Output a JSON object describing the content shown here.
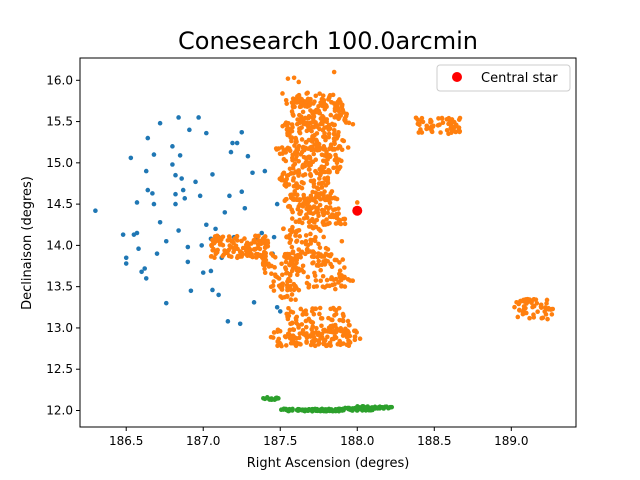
{
  "chart_data": {
    "type": "scatter",
    "title": "Conesearch 100.0arcmin",
    "xlabel": "Right Ascension (degres)",
    "ylabel": "Declinaison (degres)",
    "xlim": [
      186.2,
      189.42
    ],
    "ylim": [
      11.8,
      16.27
    ],
    "xticks": [
      186.5,
      187.0,
      187.5,
      188.0,
      188.5,
      189.0
    ],
    "xtick_labels": [
      "186.5",
      "187.0",
      "187.5",
      "188.0",
      "188.5",
      "189.0"
    ],
    "yticks": [
      12.0,
      12.5,
      13.0,
      13.5,
      14.0,
      14.5,
      15.0,
      15.5,
      16.0
    ],
    "ytick_labels": [
      "12.0",
      "12.5",
      "13.0",
      "13.5",
      "14.0",
      "14.5",
      "15.0",
      "15.5",
      "16.0"
    ],
    "legend": {
      "position": "top-right",
      "entries": [
        "Central star"
      ]
    },
    "grid": false,
    "series": [
      {
        "color": "#1f77b4",
        "points": [
          [
            186.3,
            14.42
          ],
          [
            186.48,
            14.13
          ],
          [
            186.53,
            15.06
          ],
          [
            186.5,
            13.85
          ],
          [
            186.5,
            13.78
          ],
          [
            186.55,
            14.13
          ],
          [
            186.57,
            14.15
          ],
          [
            186.58,
            13.96
          ],
          [
            186.57,
            14.52
          ],
          [
            186.6,
            13.68
          ],
          [
            186.63,
            14.9
          ],
          [
            186.64,
            14.67
          ],
          [
            186.64,
            15.3
          ],
          [
            186.62,
            13.72
          ],
          [
            186.63,
            13.6
          ],
          [
            186.67,
            14.63
          ],
          [
            186.68,
            14.5
          ],
          [
            186.68,
            15.1
          ],
          [
            186.72,
            14.28
          ],
          [
            186.7,
            13.9
          ],
          [
            186.72,
            15.48
          ],
          [
            186.76,
            14.05
          ],
          [
            186.76,
            13.3
          ],
          [
            186.8,
            15.2
          ],
          [
            186.8,
            14.98
          ],
          [
            186.82,
            14.62
          ],
          [
            186.82,
            14.85
          ],
          [
            186.82,
            14.5
          ],
          [
            186.84,
            15.55
          ],
          [
            186.85,
            15.09
          ],
          [
            186.84,
            14.18
          ],
          [
            186.86,
            14.81
          ],
          [
            186.87,
            14.67
          ],
          [
            186.88,
            14.57
          ],
          [
            186.9,
            13.98
          ],
          [
            186.9,
            13.8
          ],
          [
            186.91,
            15.4
          ],
          [
            186.92,
            13.45
          ],
          [
            186.95,
            14.77
          ],
          [
            186.97,
            15.55
          ],
          [
            186.98,
            14.6
          ],
          [
            186.99,
            14.0
          ],
          [
            187.0,
            13.67
          ],
          [
            187.02,
            15.36
          ],
          [
            187.02,
            14.25
          ],
          [
            187.05,
            14.08
          ],
          [
            187.05,
            13.69
          ],
          [
            187.06,
            14.86
          ],
          [
            187.06,
            13.46
          ],
          [
            187.08,
            14.2
          ],
          [
            187.1,
            14.1
          ],
          [
            187.1,
            13.4
          ],
          [
            187.12,
            13.85
          ],
          [
            187.14,
            14.4
          ],
          [
            187.16,
            13.08
          ],
          [
            187.17,
            14.6
          ],
          [
            187.18,
            15.13
          ],
          [
            187.19,
            15.24
          ],
          [
            187.2,
            14.1
          ],
          [
            187.22,
            15.24
          ],
          [
            187.24,
            13.05
          ],
          [
            187.25,
            14.65
          ],
          [
            187.25,
            15.37
          ],
          [
            187.27,
            14.45
          ],
          [
            187.29,
            15.08
          ],
          [
            187.32,
            14.88
          ],
          [
            187.33,
            13.31
          ],
          [
            187.35,
            14.08
          ],
          [
            187.38,
            14.15
          ],
          [
            187.4,
            14.9
          ],
          [
            187.48,
            13.25
          ],
          [
            187.48,
            14.5
          ],
          [
            187.45,
            13.9
          ],
          [
            187.5,
            13.2
          ],
          [
            187.46,
            14.1
          ]
        ]
      },
      {
        "color": "#ff7f0e",
        "clusters": [
          {
            "type": "band",
            "y0": 15.45,
            "y1": 15.85,
            "x0": 187.56,
            "x1": 187.92,
            "skew": -0.12,
            "n": 150
          },
          {
            "type": "band",
            "y0": 15.15,
            "y1": 15.5,
            "x0": 187.55,
            "x1": 187.9,
            "skew": -0.12,
            "n": 110
          },
          {
            "type": "band",
            "y0": 14.85,
            "y1": 15.2,
            "x0": 187.52,
            "x1": 187.9,
            "skew": -0.12,
            "n": 110
          },
          {
            "type": "band",
            "y0": 14.55,
            "y1": 14.9,
            "x0": 187.52,
            "x1": 187.85,
            "skew": -0.1,
            "n": 90
          },
          {
            "type": "band",
            "y0": 14.25,
            "y1": 14.58,
            "x0": 187.55,
            "x1": 187.9,
            "skew": -0.1,
            "n": 110
          },
          {
            "type": "band",
            "y0": 13.85,
            "y1": 14.25,
            "x0": 187.55,
            "x1": 187.8,
            "skew": -0.08,
            "n": 70
          },
          {
            "type": "band",
            "y0": 13.45,
            "y1": 13.9,
            "x0": 187.4,
            "x1": 187.95,
            "skew": -0.1,
            "n": 150
          },
          {
            "type": "band",
            "y0": 13.3,
            "y1": 13.55,
            "x0": 187.5,
            "x1": 187.6,
            "skew": 0.0,
            "n": 20
          },
          {
            "type": "band",
            "y0": 12.95,
            "y1": 13.25,
            "x0": 187.55,
            "x1": 187.95,
            "skew": -0.08,
            "n": 80
          },
          {
            "type": "band",
            "y0": 12.78,
            "y1": 12.98,
            "x0": 187.43,
            "x1": 188.02,
            "skew": 0.0,
            "n": 120
          },
          {
            "type": "band",
            "y0": 13.85,
            "y1": 14.12,
            "x0": 187.05,
            "x1": 187.42,
            "skew": 0.0,
            "n": 130
          },
          {
            "type": "band",
            "y0": 15.35,
            "y1": 15.55,
            "x0": 188.38,
            "x1": 188.67,
            "skew": 0.0,
            "n": 55
          },
          {
            "type": "band",
            "y0": 13.1,
            "y1": 13.35,
            "x0": 189.02,
            "x1": 189.27,
            "skew": 0.0,
            "n": 55
          }
        ],
        "points": [
          [
            187.55,
            16.02
          ],
          [
            187.59,
            16.03
          ],
          [
            187.62,
            15.98
          ],
          [
            187.85,
            16.1
          ],
          [
            187.6,
            15.3
          ],
          [
            187.56,
            15.35
          ],
          [
            188.0,
            14.52
          ],
          [
            187.52,
            14.2
          ],
          [
            187.5,
            13.5
          ],
          [
            187.62,
            13.95
          ],
          [
            187.9,
            14.05
          ]
        ]
      },
      {
        "color": "#2ca02c",
        "clusters": [
          {
            "type": "line",
            "y0": 11.99,
            "y1": 12.02,
            "x0": 187.5,
            "x1": 187.92,
            "skew": 0.0,
            "n": 90
          },
          {
            "type": "line",
            "y0": 12.0,
            "y1": 12.03,
            "x0": 187.92,
            "x1": 188.1,
            "skew": 0.0,
            "n": 45
          },
          {
            "type": "line",
            "y0": 12.02,
            "y1": 12.05,
            "x0": 188.0,
            "x1": 188.23,
            "skew": 0.0,
            "n": 45
          },
          {
            "type": "line",
            "y0": 12.13,
            "y1": 12.16,
            "x0": 187.39,
            "x1": 187.49,
            "skew": 0.0,
            "n": 15
          }
        ]
      },
      {
        "name": "Central star",
        "color": "#ff0000",
        "points": [
          [
            188.0,
            14.42
          ]
        ]
      }
    ]
  }
}
